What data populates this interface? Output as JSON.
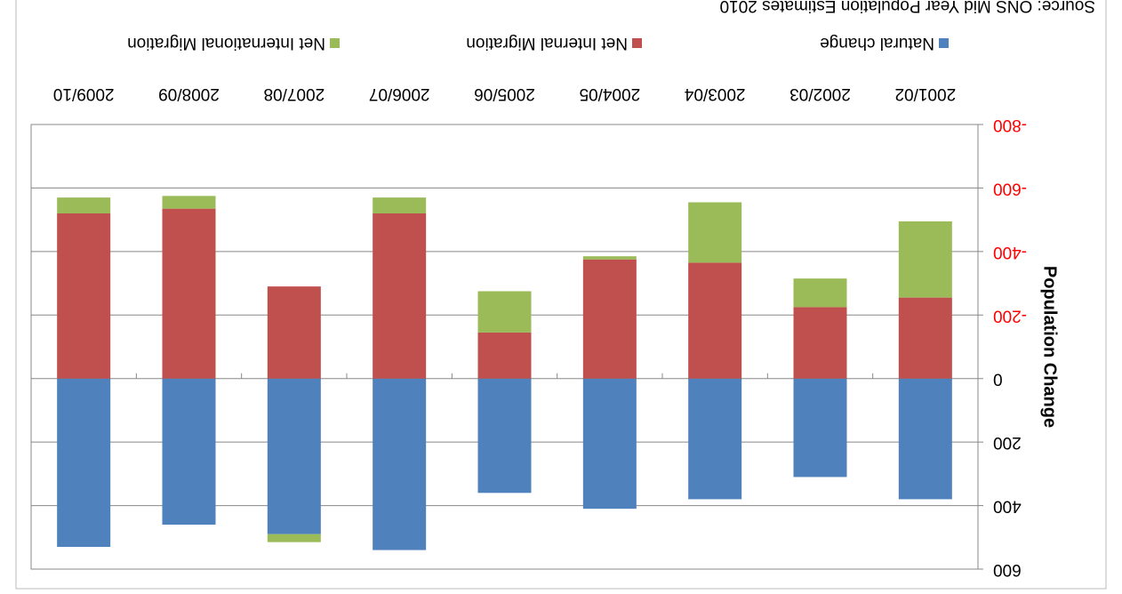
{
  "chart_data": {
    "type": "stacked_bar",
    "y_label": "Population Change",
    "source": "Source: ONS Mid Year Population Estimates 2010",
    "categories": [
      "2001/02",
      "2002/03",
      "2003/04",
      "2004/05",
      "2005/06",
      "2006/07",
      "2007/08",
      "2008/09",
      "2009/10"
    ],
    "series": [
      {
        "name": "Natural change",
        "color": "#4f81bd",
        "values": [
          380,
          310,
          380,
          410,
          360,
          540,
          490,
          460,
          530
        ]
      },
      {
        "name": "Net Internal Migration",
        "color": "#c0504d",
        "values": [
          -255,
          -225,
          -365,
          -375,
          -145,
          -520,
          -290,
          -535,
          -520
        ]
      },
      {
        "name": "Net International Migration",
        "color": "#9bbb59",
        "values": [
          -240,
          -90,
          -190,
          -10,
          -130,
          -50,
          25,
          -40,
          -50
        ]
      }
    ],
    "ylim": [
      -800,
      600
    ],
    "yticks": [
      -800,
      -600,
      -400,
      -200,
      0,
      200,
      400,
      600
    ],
    "negative_tick_color": "#ff0000",
    "grid": true,
    "legend": "bottom",
    "rotation": 180
  }
}
